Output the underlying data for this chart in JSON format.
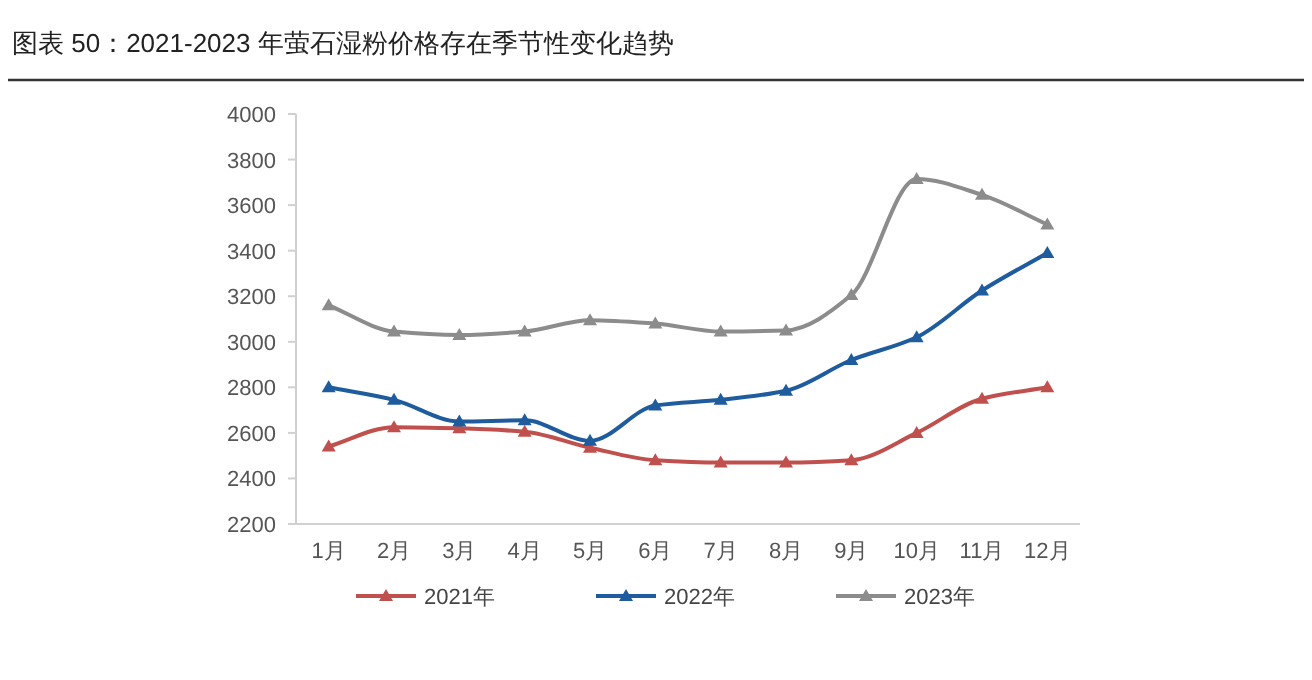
{
  "chart_data": {
    "type": "line",
    "title": "图表 50：2021-2023 年萤石湿粉价格存在季节性变化趋势",
    "categories": [
      "1月",
      "2月",
      "3月",
      "4月",
      "5月",
      "6月",
      "7月",
      "8月",
      "9月",
      "10月",
      "11月",
      "12月"
    ],
    "series": [
      {
        "name": "2021年",
        "color": "#c0504d",
        "values": [
          2540,
          2625,
          2620,
          2605,
          2535,
          2480,
          2470,
          2470,
          2480,
          2600,
          2750,
          2800
        ]
      },
      {
        "name": "2022年",
        "color": "#1f5c9e",
        "values": [
          2800,
          2745,
          2650,
          2655,
          2565,
          2720,
          2745,
          2785,
          2920,
          3020,
          3225,
          3390
        ]
      },
      {
        "name": "2023年",
        "color": "#8c8c8c",
        "values": [
          3160,
          3045,
          3030,
          3045,
          3095,
          3080,
          3045,
          3050,
          3205,
          3715,
          3645,
          3515
        ]
      }
    ],
    "ylim": [
      2200,
      4000
    ],
    "yticks": [
      2200,
      2400,
      2600,
      2800,
      3000,
      3200,
      3400,
      3600,
      3800,
      4000
    ],
    "grid": false,
    "legend": "bottom",
    "marker": "triangle",
    "line_style": "solid"
  }
}
